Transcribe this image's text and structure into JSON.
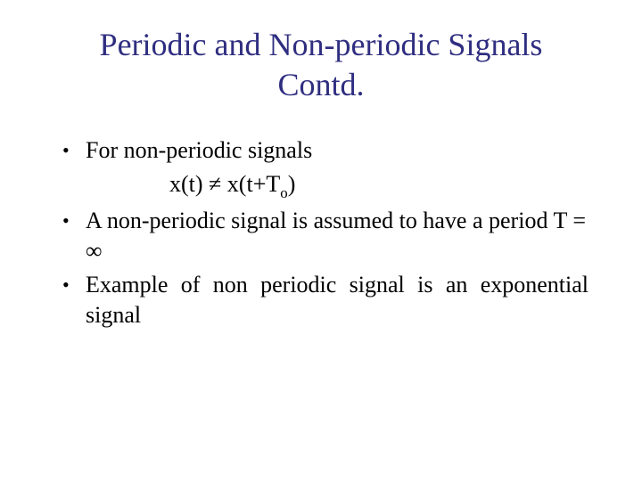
{
  "title_color": "#2f2e80",
  "body_color": "#000000",
  "title_line1": "Periodic and Non-periodic Signals",
  "title_line2": "Contd.",
  "bullets": {
    "b1": "For non-periodic signals",
    "formula_pre": "x(t) ≠ x(t+T",
    "formula_sub": "o",
    "formula_post": ")",
    "b2": "A non-periodic signal is assumed to have a period T = ∞",
    "b3": "Example of non periodic signal is an exponential signal"
  },
  "bullet_char": "•"
}
